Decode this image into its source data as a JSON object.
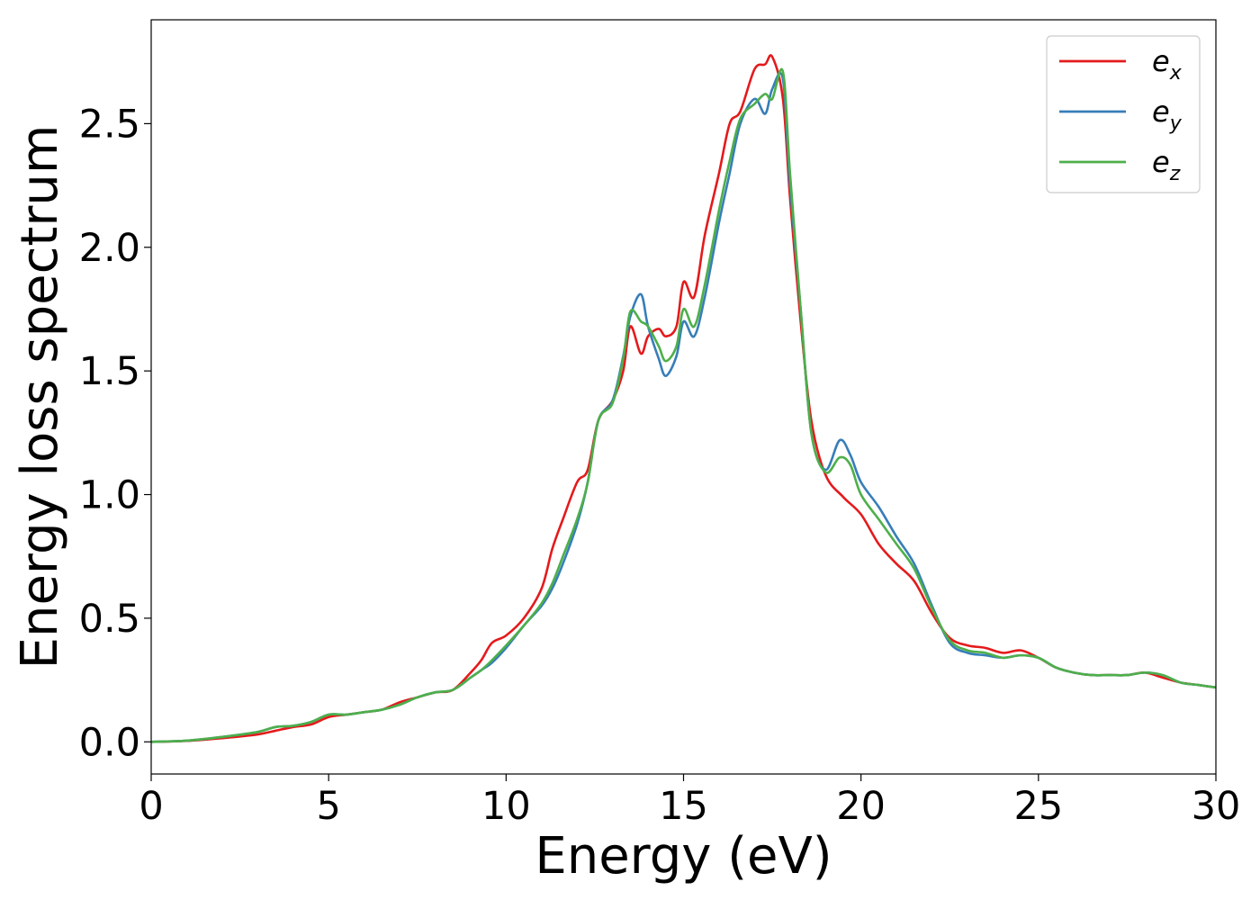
{
  "chart_data": {
    "type": "line",
    "xlabel": "Energy (eV)",
    "ylabel": "Energy loss spectrum",
    "xlim": [
      0,
      30
    ],
    "ylim": [
      -0.13,
      2.92
    ],
    "xticks": [
      0,
      5,
      10,
      15,
      20,
      25,
      30
    ],
    "xtick_labels": [
      "0",
      "5",
      "10",
      "15",
      "20",
      "25",
      "30"
    ],
    "yticks": [
      0.0,
      0.5,
      1.0,
      1.5,
      2.0,
      2.5
    ],
    "ytick_labels": [
      "0.0",
      "0.5",
      "1.0",
      "1.5",
      "2.0",
      "2.5"
    ],
    "grid": false,
    "legend_position": "top-right",
    "series": [
      {
        "name": "e_x",
        "legend_base": "e",
        "legend_sub": "x",
        "color": "#e41a1c",
        "x": [
          0,
          1,
          2,
          3,
          3.5,
          4,
          4.5,
          5,
          5.5,
          6,
          6.5,
          7,
          7.5,
          8,
          8.5,
          9,
          9.3,
          9.6,
          10,
          10.5,
          11,
          11.3,
          11.6,
          12,
          12.3,
          12.6,
          13,
          13.3,
          13.5,
          13.8,
          14,
          14.3,
          14.5,
          14.8,
          15,
          15.3,
          15.6,
          16,
          16.3,
          16.6,
          17,
          17.3,
          17.5,
          17.8,
          18,
          18.3,
          18.6,
          19,
          19.5,
          20,
          20.5,
          21,
          21.5,
          22,
          22.5,
          23,
          23.5,
          24,
          24.5,
          25,
          25.5,
          26,
          26.5,
          27,
          27.5,
          28,
          28.5,
          29,
          29.5,
          30
        ],
        "y": [
          0,
          0.004,
          0.015,
          0.03,
          0.045,
          0.06,
          0.07,
          0.1,
          0.11,
          0.12,
          0.13,
          0.16,
          0.18,
          0.2,
          0.21,
          0.28,
          0.33,
          0.4,
          0.43,
          0.5,
          0.62,
          0.78,
          0.9,
          1.05,
          1.1,
          1.3,
          1.38,
          1.5,
          1.68,
          1.57,
          1.64,
          1.67,
          1.64,
          1.68,
          1.86,
          1.8,
          2.05,
          2.3,
          2.5,
          2.55,
          2.72,
          2.74,
          2.77,
          2.6,
          2.2,
          1.7,
          1.3,
          1.08,
          0.99,
          0.92,
          0.8,
          0.72,
          0.65,
          0.52,
          0.42,
          0.39,
          0.38,
          0.36,
          0.37,
          0.34,
          0.3,
          0.28,
          0.27,
          0.27,
          0.27,
          0.28,
          0.26,
          0.24,
          0.23,
          0.22
        ]
      },
      {
        "name": "e_y",
        "legend_base": "e",
        "legend_sub": "y",
        "color": "#377eb8",
        "x": [
          0,
          1,
          2,
          3,
          3.5,
          4,
          4.5,
          5,
          5.5,
          6,
          6.5,
          7,
          7.5,
          8,
          8.5,
          9,
          9.3,
          9.6,
          10,
          10.5,
          11,
          11.3,
          11.6,
          12,
          12.3,
          12.6,
          13,
          13.3,
          13.5,
          13.8,
          14,
          14.3,
          14.5,
          14.8,
          15,
          15.3,
          15.6,
          16,
          16.3,
          16.6,
          17,
          17.3,
          17.5,
          17.8,
          18,
          18.3,
          18.6,
          19,
          19.4,
          19.7,
          20,
          20.5,
          21,
          21.5,
          22,
          22.5,
          23,
          23.5,
          24,
          24.5,
          25,
          25.5,
          26,
          26.5,
          27,
          27.5,
          28,
          28.5,
          29,
          29.5,
          30
        ],
        "y": [
          0,
          0.005,
          0.02,
          0.04,
          0.06,
          0.065,
          0.08,
          0.11,
          0.11,
          0.12,
          0.13,
          0.15,
          0.18,
          0.2,
          0.21,
          0.26,
          0.29,
          0.32,
          0.38,
          0.47,
          0.55,
          0.62,
          0.72,
          0.88,
          1.05,
          1.3,
          1.38,
          1.56,
          1.72,
          1.81,
          1.68,
          1.55,
          1.48,
          1.56,
          1.7,
          1.64,
          1.8,
          2.1,
          2.3,
          2.5,
          2.6,
          2.54,
          2.64,
          2.68,
          2.25,
          1.75,
          1.25,
          1.1,
          1.22,
          1.16,
          1.05,
          0.95,
          0.83,
          0.72,
          0.55,
          0.4,
          0.36,
          0.35,
          0.34,
          0.35,
          0.34,
          0.3,
          0.28,
          0.27,
          0.27,
          0.27,
          0.28,
          0.27,
          0.24,
          0.23,
          0.22
        ]
      },
      {
        "name": "e_z",
        "legend_base": "e",
        "legend_sub": "z",
        "color": "#4daf4a",
        "x": [
          0,
          1,
          2,
          3,
          3.5,
          4,
          4.5,
          5,
          5.5,
          6,
          6.5,
          7,
          7.5,
          8,
          8.5,
          9,
          9.3,
          9.6,
          10,
          10.5,
          11,
          11.3,
          11.6,
          12,
          12.3,
          12.6,
          13,
          13.3,
          13.5,
          13.8,
          14,
          14.3,
          14.5,
          14.8,
          15,
          15.3,
          15.6,
          16,
          16.3,
          16.6,
          17,
          17.3,
          17.5,
          17.8,
          18,
          18.3,
          18.6,
          19,
          19.4,
          19.7,
          20,
          20.5,
          21,
          21.5,
          22,
          22.5,
          23,
          23.5,
          24,
          24.5,
          25,
          25.5,
          26,
          26.5,
          27,
          27.5,
          28,
          28.5,
          29,
          29.5,
          30
        ],
        "y": [
          0,
          0.005,
          0.02,
          0.04,
          0.06,
          0.065,
          0.08,
          0.11,
          0.11,
          0.12,
          0.13,
          0.15,
          0.18,
          0.2,
          0.21,
          0.26,
          0.29,
          0.33,
          0.39,
          0.47,
          0.56,
          0.64,
          0.75,
          0.9,
          1.05,
          1.3,
          1.37,
          1.55,
          1.74,
          1.7,
          1.68,
          1.6,
          1.54,
          1.6,
          1.75,
          1.68,
          1.85,
          2.15,
          2.35,
          2.52,
          2.58,
          2.62,
          2.6,
          2.71,
          2.3,
          1.75,
          1.25,
          1.09,
          1.15,
          1.12,
          1.0,
          0.9,
          0.8,
          0.7,
          0.54,
          0.41,
          0.37,
          0.36,
          0.34,
          0.35,
          0.34,
          0.3,
          0.28,
          0.27,
          0.27,
          0.27,
          0.28,
          0.27,
          0.24,
          0.23,
          0.22
        ]
      }
    ]
  }
}
